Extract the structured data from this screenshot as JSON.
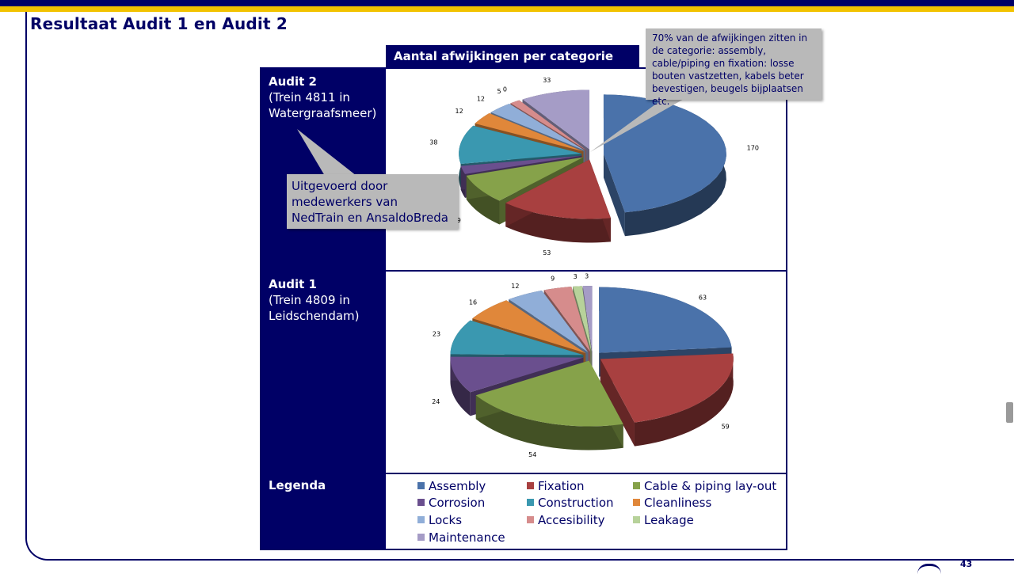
{
  "page": {
    "title": "Resultaat Audit 1 en Audit 2",
    "page_number": "43"
  },
  "chart_header": "Aantal afwijkingen per categorie",
  "rows": {
    "audit2": {
      "title": "Audit 2",
      "subtitle": "(Trein 4811 in Watergraafsmeer)"
    },
    "audit1": {
      "title": "Audit 1",
      "subtitle": "(Trein 4809 in Leidschendam)"
    },
    "legend": {
      "title": "Legenda"
    }
  },
  "callouts": {
    "top": "70% van de afwijkingen zitten in de categorie: assembly, cable/piping en fixation: losse bouten vastzetten, kabels beter bevestigen, beugels bijplaatsen etc.",
    "left": "Uitgevoerd door medewerkers van NedTrain en AnsaldoBreda"
  },
  "legend": [
    {
      "label": "Assembly",
      "color": "#4a72aa"
    },
    {
      "label": "Fixation",
      "color": "#a84040"
    },
    {
      "label": "Cable & piping lay-out",
      "color": "#86a24a"
    },
    {
      "label": "Corrosion",
      "color": "#6a4f8e"
    },
    {
      "label": "Construction",
      "color": "#3a98b0"
    },
    {
      "label": "Cleanliness",
      "color": "#e0873a"
    },
    {
      "label": "Locks",
      "color": "#90aed8"
    },
    {
      "label": "Accesibility",
      "color": "#d68c8c"
    },
    {
      "label": "Leakage",
      "color": "#b7d29a"
    },
    {
      "label": "Maintenance",
      "color": "#a59cc6"
    }
  ],
  "chart_data": [
    {
      "type": "pie",
      "title": "Audit 2",
      "categories": [
        "Assembly",
        "Fixation",
        "Cable & piping lay-out",
        "Corrosion",
        "Construction",
        "Cleanliness",
        "Locks",
        "Accesibility",
        "Leakage",
        "Maintenance"
      ],
      "values": [
        170,
        53,
        29,
        8,
        38,
        12,
        12,
        5,
        0,
        33
      ],
      "data_labels": [
        "170",
        "53",
        "29",
        "",
        "38",
        "12",
        "12",
        "5",
        "0",
        "33"
      ]
    },
    {
      "type": "pie",
      "title": "Audit 1",
      "categories": [
        "Assembly",
        "Fixation",
        "Cable & piping lay-out",
        "Corrosion",
        "Construction",
        "Cleanliness",
        "Locks",
        "Accesibility",
        "Leakage",
        "Maintenance"
      ],
      "values": [
        63,
        59,
        54,
        24,
        23,
        16,
        12,
        9,
        3,
        3
      ],
      "data_labels": [
        "63",
        "59",
        "54",
        "24",
        "23",
        "16",
        "12",
        "9",
        "3",
        "3"
      ]
    }
  ]
}
